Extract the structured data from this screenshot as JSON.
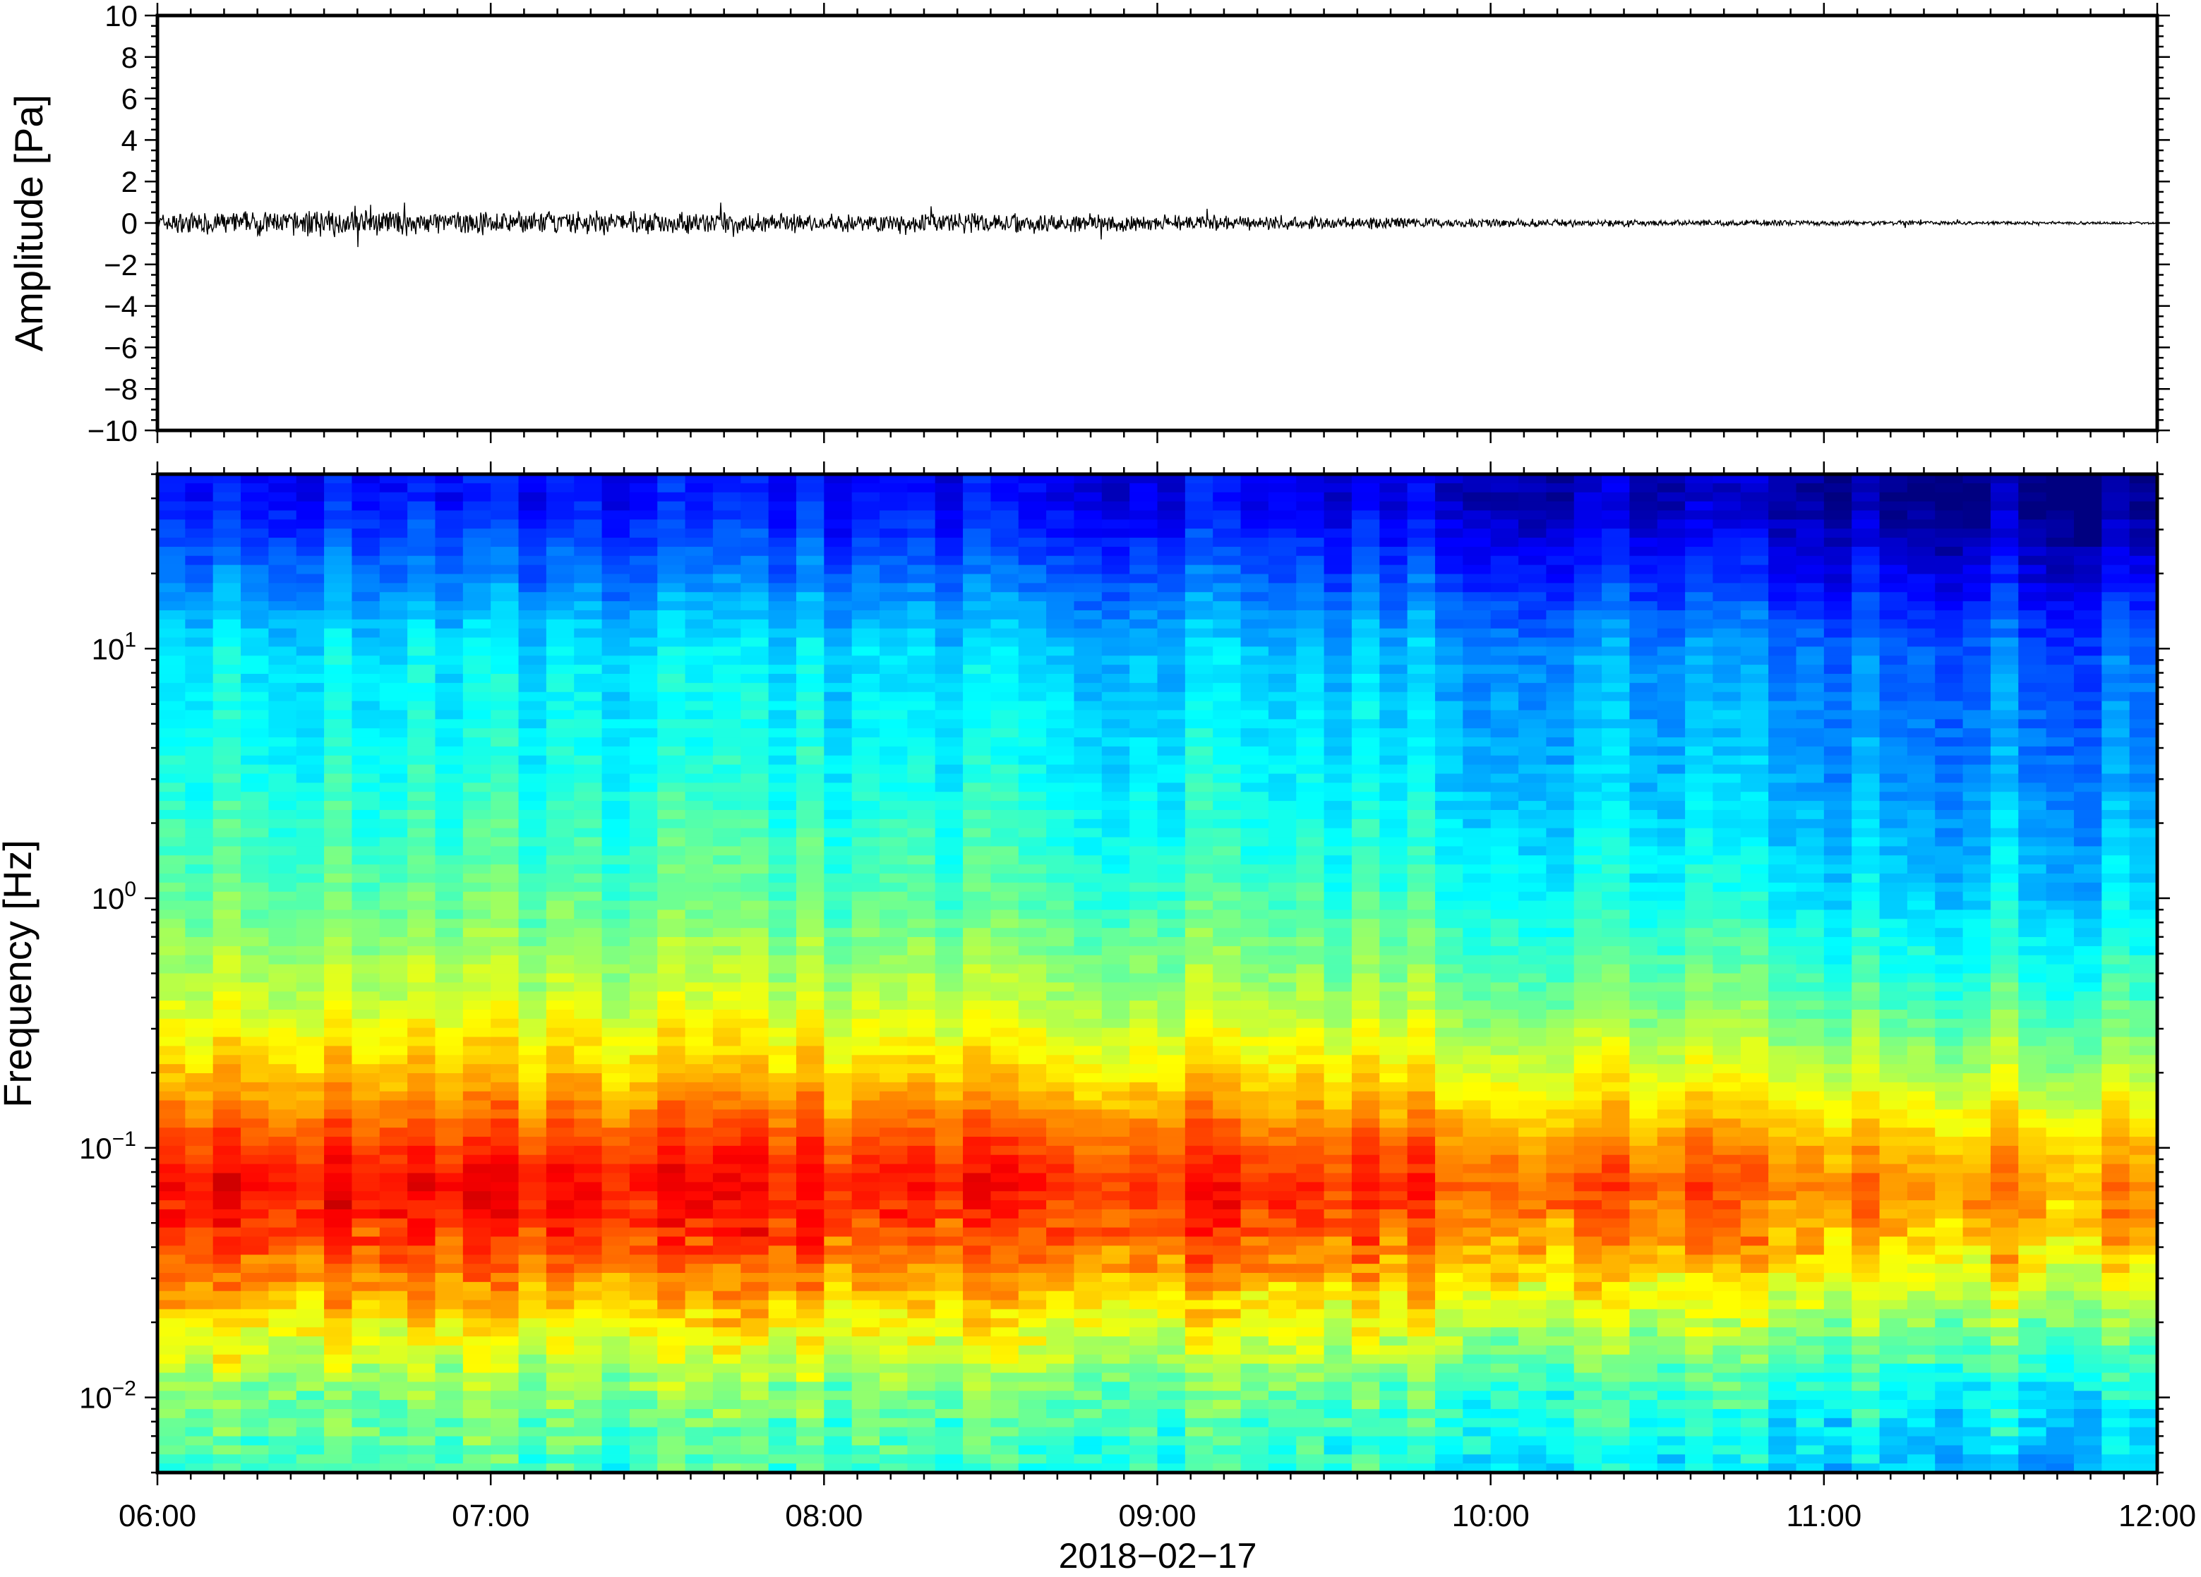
{
  "chart_data": [
    {
      "type": "line",
      "title": "",
      "xlabel": "",
      "ylabel": "Amplitude [Pa]",
      "xlim": [
        "06:00",
        "12:00"
      ],
      "ylim": [
        -10,
        10
      ],
      "x_ticks": [
        "06:00",
        "07:00",
        "08:00",
        "09:00",
        "10:00",
        "11:00",
        "12:00"
      ],
      "y_ticks": [
        10,
        8,
        6,
        4,
        2,
        0,
        -2,
        -4,
        -6,
        -8,
        -10
      ],
      "y_tick_labels": [
        "10",
        "8",
        "6",
        "4",
        "2",
        "0",
        "−2",
        "−4",
        "−6",
        "−8",
        "−10"
      ],
      "grid": false,
      "series": [
        {
          "time_hours": [
            6.0,
            6.5,
            7.0,
            7.5,
            8.0,
            8.5,
            9.0,
            9.5,
            10.0,
            10.5,
            11.0,
            11.5,
            12.0
          ],
          "amplitude_envelope_pa": [
            0.45,
            0.6,
            0.5,
            0.55,
            0.4,
            0.5,
            0.35,
            0.3,
            0.2,
            0.15,
            0.12,
            0.08,
            0.05
          ],
          "color": "#000000"
        }
      ]
    },
    {
      "type": "heatmap",
      "title": "",
      "xlabel": "2018−02−17",
      "ylabel": "Frequency [Hz]",
      "xlim": [
        "06:00",
        "12:00"
      ],
      "ylim_hz": [
        0.005,
        50
      ],
      "yscale": "log",
      "x_ticks": [
        "06:00",
        "07:00",
        "08:00",
        "09:00",
        "10:00",
        "11:00",
        "12:00"
      ],
      "y_ticks": [
        0.01,
        0.1,
        1,
        10
      ],
      "y_tick_labels": [
        {
          "base": "10",
          "exp": "−2"
        },
        {
          "base": "10",
          "exp": "−1"
        },
        {
          "base": "10",
          "exp": "0"
        },
        {
          "base": "10",
          "exp": "1"
        }
      ],
      "colormap": "jet",
      "colorbar": false,
      "relative_power_profile": {
        "frequency_hz": [
          0.005,
          0.01,
          0.02,
          0.04,
          0.07,
          0.1,
          0.2,
          0.4,
          1,
          3,
          10,
          20,
          40
        ],
        "level_0_to_1": [
          0.42,
          0.48,
          0.62,
          0.78,
          0.85,
          0.8,
          0.66,
          0.55,
          0.45,
          0.38,
          0.33,
          0.22,
          0.12
        ]
      },
      "time_trend_hours": [
        6,
        9,
        12
      ],
      "time_trend_offset": [
        0.02,
        0.0,
        -0.12
      ]
    }
  ]
}
